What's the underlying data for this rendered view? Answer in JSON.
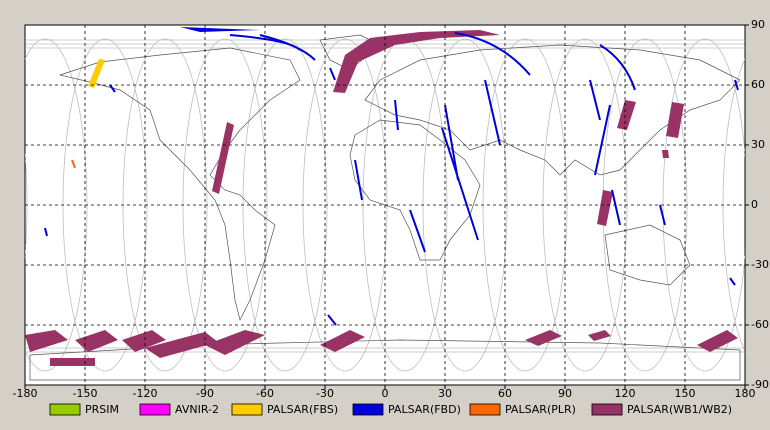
{
  "map": {
    "xticks": [
      -180,
      -150,
      -120,
      -90,
      -60,
      -30,
      0,
      30,
      60,
      90,
      120,
      150,
      180
    ],
    "yticks": [
      90,
      60,
      30,
      0,
      -30,
      -60,
      -90
    ],
    "legend": [
      {
        "name": "PRSIM",
        "color": "#99cc00"
      },
      {
        "name": "AVNIR-2",
        "color": "#ff00ff"
      },
      {
        "name": "PALSAR(FBS)",
        "color": "#ffcc00"
      },
      {
        "name": "PALSAR(FBD)",
        "color": "#0000dd"
      },
      {
        "name": "PALSAR(PLR)",
        "color": "#ff6600"
      },
      {
        "name": "PALSAR(WB1/WB2)",
        "color": "#993366"
      }
    ]
  }
}
